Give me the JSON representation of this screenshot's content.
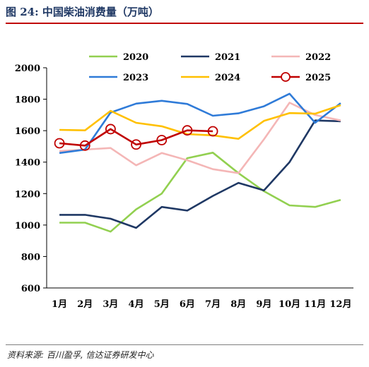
{
  "header": {
    "title": "图 24:  中国柴油消费量（万吨）"
  },
  "footer": {
    "source": "资料来源:  百川盈孚, 信达证券研发中心"
  },
  "chart_data": {
    "type": "line",
    "title": "图 24:  中国柴油消费量（万吨）",
    "xlabel": "",
    "ylabel": "",
    "categories": [
      "1月",
      "2月",
      "3月",
      "4月",
      "5月",
      "6月",
      "7月",
      "8月",
      "9月",
      "10月",
      "11月",
      "12月"
    ],
    "ylim": [
      600,
      2000
    ],
    "yticks": [
      600,
      800,
      1000,
      1200,
      1400,
      1600,
      1800,
      2000
    ],
    "grid": false,
    "legend": "top",
    "series": [
      {
        "name": "2020",
        "color": "#92d050",
        "values": [
          1015,
          1015,
          958,
          1100,
          1200,
          1425,
          1460,
          1330,
          1215,
          1125,
          1115,
          1160
        ]
      },
      {
        "name": "2021",
        "color": "#1f3864",
        "values": [
          1065,
          1065,
          1040,
          982,
          1115,
          1092,
          1185,
          1268,
          1220,
          1400,
          1665,
          1660
        ]
      },
      {
        "name": "2022",
        "color": "#f4b6b6",
        "values": [
          1470,
          1480,
          1490,
          1380,
          1458,
          1412,
          1355,
          1330,
          1545,
          1778,
          1700,
          1665
        ]
      },
      {
        "name": "2023",
        "color": "#2f7bd8",
        "values": [
          1458,
          1480,
          1715,
          1772,
          1790,
          1770,
          1695,
          1710,
          1755,
          1835,
          1650,
          1775
        ]
      },
      {
        "name": "2024",
        "color": "#ffc000",
        "values": [
          1605,
          1602,
          1726,
          1650,
          1628,
          1578,
          1570,
          1548,
          1662,
          1712,
          1708,
          1762
        ]
      },
      {
        "name": "2025",
        "color": "#c00000",
        "marker": "circle",
        "values": [
          1520,
          1505,
          1610,
          1512,
          1540,
          1602,
          1596,
          null,
          null,
          null,
          null,
          null
        ]
      }
    ]
  }
}
